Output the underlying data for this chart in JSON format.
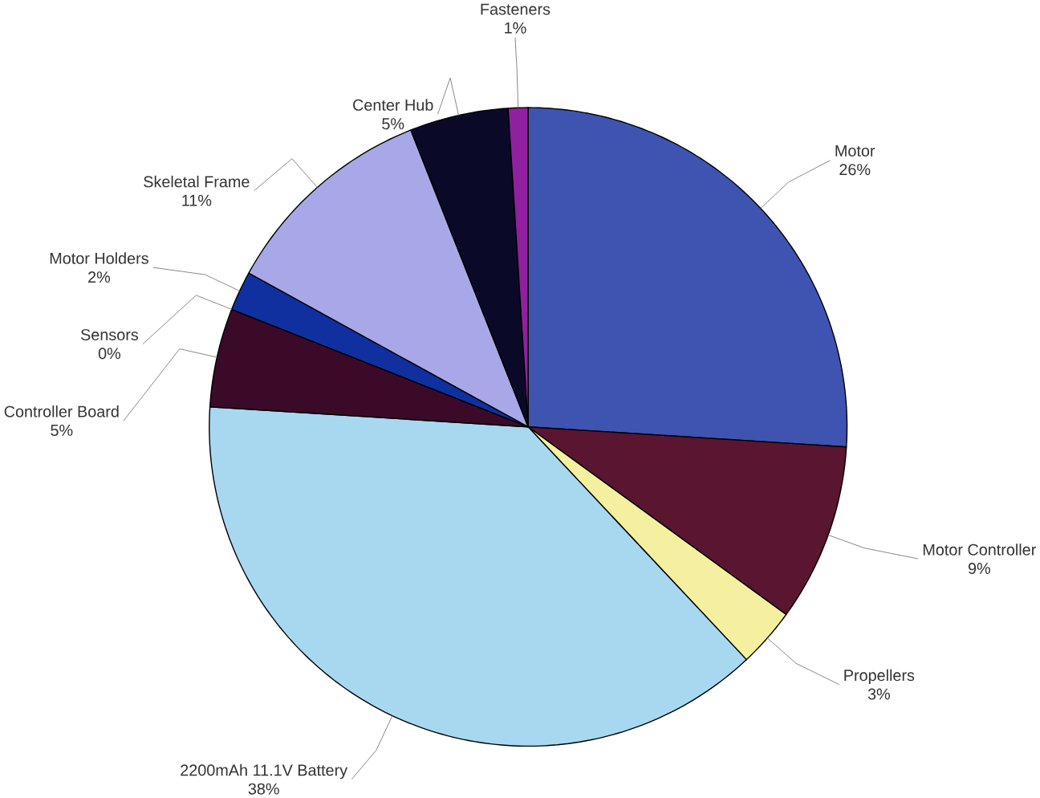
{
  "chart_data": {
    "type": "pie",
    "categories": [
      "Motor",
      "Motor Controller",
      "Propellers",
      "2200mAh 11.1V Battery",
      "Controller Board",
      "Sensors",
      "Motor Holders",
      "Skeletal Frame",
      "Center Hub",
      "Fasteners"
    ],
    "values": [
      26,
      9,
      3,
      38,
      5,
      0,
      2,
      11,
      5,
      1
    ],
    "value_labels": [
      "26%",
      "9%",
      "3%",
      "38%",
      "5%",
      "0%",
      "2%",
      "11%",
      "5%",
      "1%"
    ],
    "colors": [
      "#3f54b0",
      "#5a1530",
      "#f5f0a0",
      "#a8d8f0",
      "#3a0a28",
      "#6a6aa0",
      "#1030a0",
      "#a8a8e8",
      "#0a0a28",
      "#9020a0"
    ]
  }
}
